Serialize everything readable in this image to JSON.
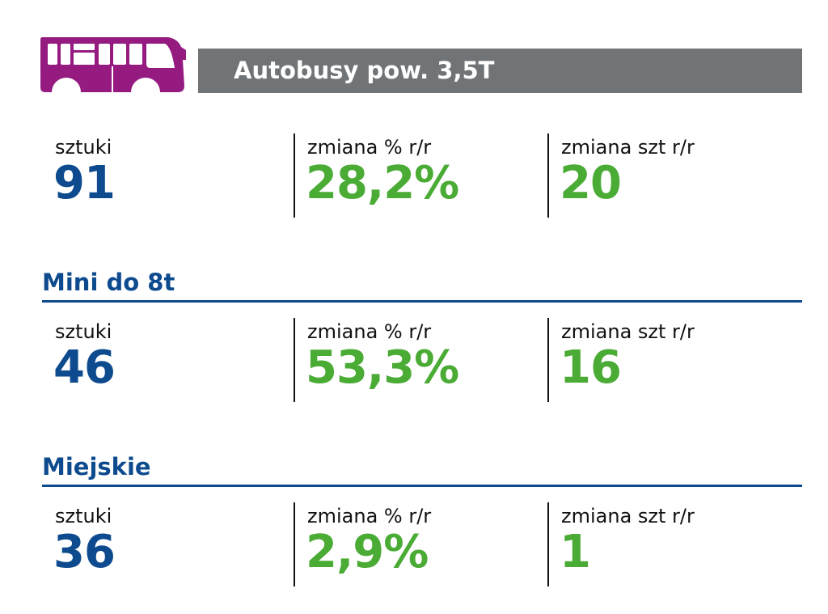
{
  "header": {
    "title": "Autobusy pow. 3,5T",
    "icon": "bus-icon"
  },
  "colors": {
    "purple": "#951b81",
    "gray": "#717476",
    "blue": "#0d4b8e",
    "green": "#4aab35"
  },
  "sections": [
    {
      "title": "",
      "stats": [
        {
          "label": "sztuki",
          "value": "91"
        },
        {
          "label": "zmiana % r/r",
          "value": "28,2%"
        },
        {
          "label": "zmiana szt r/r",
          "value": "20"
        }
      ]
    },
    {
      "title": "Mini do 8t",
      "stats": [
        {
          "label": "sztuki",
          "value": "46"
        },
        {
          "label": "zmiana % r/r",
          "value": "53,3%"
        },
        {
          "label": "zmiana szt r/r",
          "value": "16"
        }
      ]
    },
    {
      "title": "Miejskie",
      "stats": [
        {
          "label": "sztuki",
          "value": "36"
        },
        {
          "label": "zmiana % r/r",
          "value": "2,9%"
        },
        {
          "label": "zmiana szt r/r",
          "value": "1"
        }
      ]
    }
  ]
}
